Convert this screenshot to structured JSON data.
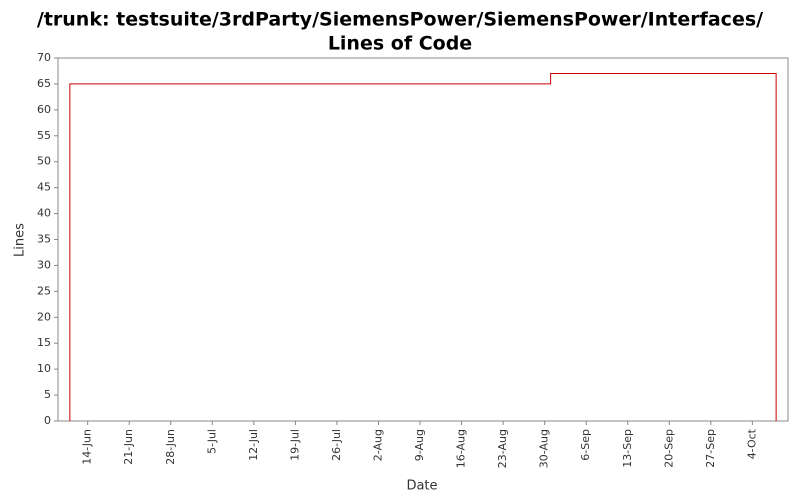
{
  "chart_data": {
    "type": "step",
    "title": [
      "/trunk: testsuite/3rdParty/SiemensPower/SiemensPower/Interfaces/",
      "Lines of Code"
    ],
    "x_label": "Date",
    "y_label": "Lines",
    "series": [
      {
        "name": "Lines",
        "color": "#cc0000",
        "x": [
          "11-Jun",
          "31-Aug",
          "8-Oct"
        ],
        "values": [
          65,
          67,
          67
        ]
      }
    ],
    "xlim": [
      "9-Jun",
      "10-Oct"
    ],
    "xticks": [
      "14-Jun",
      "21-Jun",
      "28-Jun",
      "5-Jul",
      "12-Jul",
      "19-Jul",
      "26-Jul",
      "2-Aug",
      "9-Aug",
      "16-Aug",
      "23-Aug",
      "30-Aug",
      "6-Sep",
      "13-Sep",
      "20-Sep",
      "27-Sep",
      "4-Oct"
    ],
    "ylim": [
      0,
      70
    ],
    "yticks": [
      0,
      5,
      10,
      15,
      20,
      25,
      30,
      35,
      40,
      45,
      50,
      55,
      60,
      65,
      70
    ],
    "grid": false
  }
}
